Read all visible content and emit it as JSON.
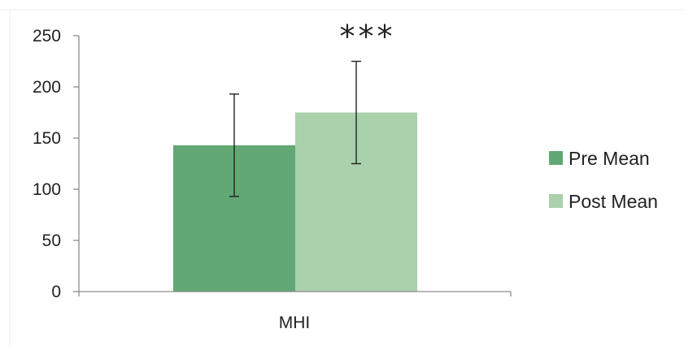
{
  "chart_data": {
    "type": "bar",
    "categories": [
      "MHI"
    ],
    "series": [
      {
        "name": "Pre Mean",
        "values": [
          143
        ],
        "error": [
          50
        ],
        "color": "#62a874"
      },
      {
        "name": "Post Mean",
        "values": [
          175
        ],
        "error": [
          50
        ],
        "color": "#a9d1ac"
      }
    ],
    "ylim": [
      0,
      250
    ],
    "yticks": [
      0,
      50,
      100,
      150,
      200,
      250
    ],
    "ytick_labels": [
      "0",
      "50",
      "100",
      "150",
      "200",
      "250"
    ],
    "annotation": "***",
    "legend_position": "right",
    "grid": false
  }
}
